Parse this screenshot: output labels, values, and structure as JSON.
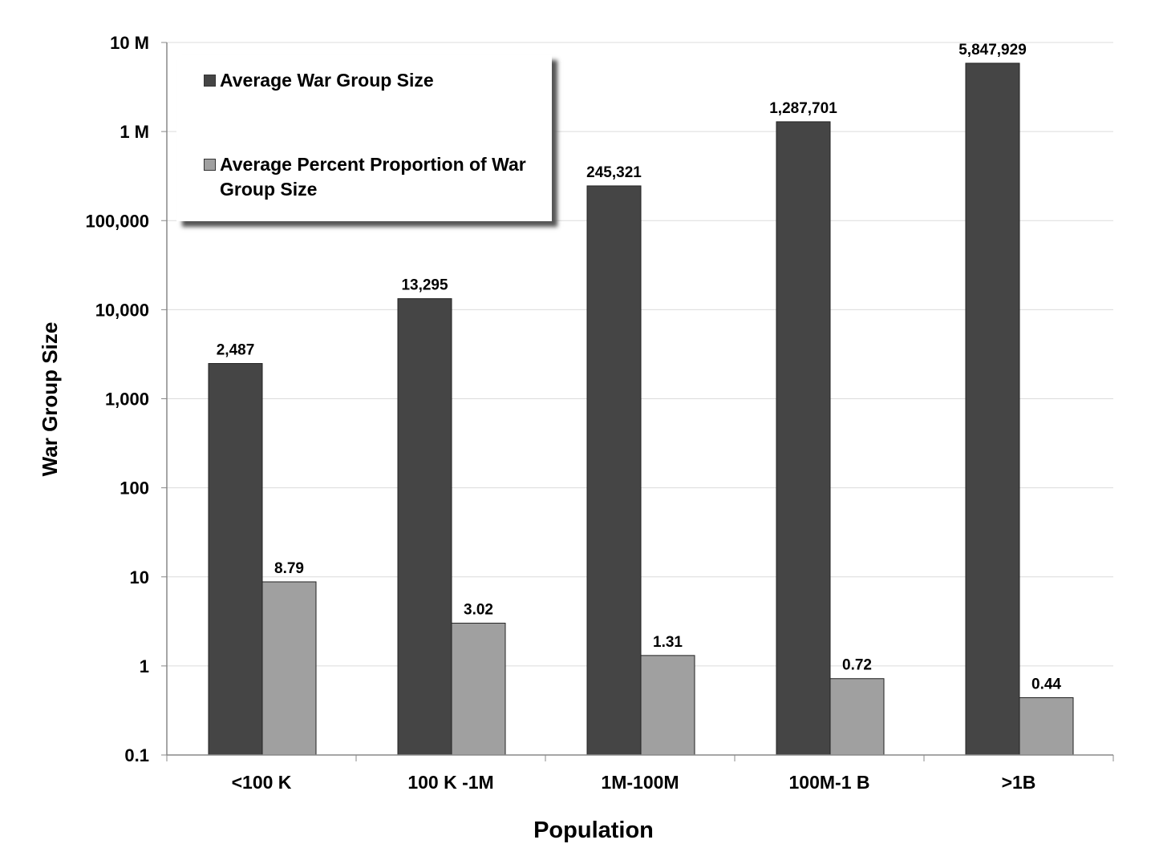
{
  "chart_data": {
    "type": "bar",
    "ylabel": "War Group Size",
    "xlabel": "Population",
    "yscale": "log",
    "ylim": [
      0.1,
      10000000
    ],
    "yticks": [
      {
        "value": 10000000,
        "label": "10 M"
      },
      {
        "value": 1000000,
        "label": "1 M"
      },
      {
        "value": 100000,
        "label": "100,000"
      },
      {
        "value": 10000,
        "label": "10,000"
      },
      {
        "value": 1000,
        "label": "1,000"
      },
      {
        "value": 100,
        "label": "100"
      },
      {
        "value": 10,
        "label": "10"
      },
      {
        "value": 1,
        "label": "1"
      },
      {
        "value": 0.1,
        "label": "0.1"
      }
    ],
    "grid": true,
    "legend_position": "top-left",
    "categories": [
      "<100 K",
      "100 K -1M",
      "1M-100M",
      "100M-1 B",
      ">1B"
    ],
    "series": [
      {
        "name": "Average War Group Size",
        "color": "#454545",
        "values": [
          2487,
          13295,
          245321,
          1287701,
          5847929
        ],
        "labels": [
          "2,487",
          "13,295",
          "245,321",
          "1,287,701",
          "5,847,929"
        ]
      },
      {
        "name": "Average Percent Proportion of War Group Size",
        "color": "#a0a0a0",
        "values": [
          8.79,
          3.02,
          1.31,
          0.72,
          0.44
        ],
        "labels": [
          "8.79",
          "3.02",
          "1.31",
          "0.72",
          "0.44"
        ]
      }
    ]
  }
}
